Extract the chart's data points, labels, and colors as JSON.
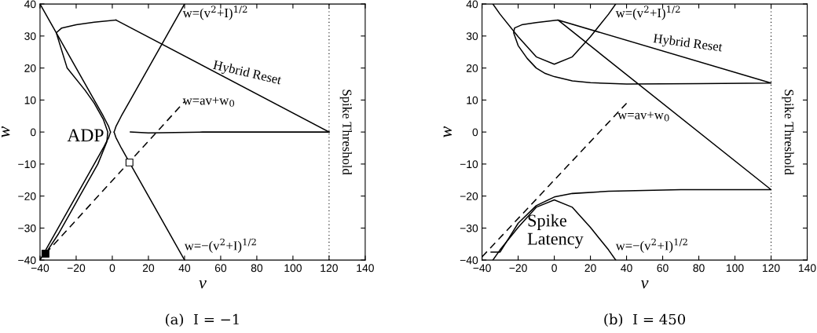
{
  "chart_data": [
    {
      "type": "line",
      "title": "(a)  I = −1",
      "xlabel": "v",
      "ylabel": "w",
      "xlim": [
        -40,
        140
      ],
      "ylim": [
        -40,
        40
      ],
      "xticks": [
        -40,
        -20,
        0,
        20,
        40,
        60,
        80,
        100,
        120,
        140
      ],
      "yticks": [
        -40,
        -30,
        -20,
        -10,
        0,
        10,
        20,
        30,
        40
      ],
      "ref_lines": [
        {
          "axis": "x",
          "value": 120,
          "label": "Spike Threshold",
          "color": "#000000",
          "line_style": "dotted"
        }
      ],
      "annotations": [
        "w=(v$^{2}$+I)$^{1/2}$",
        "w=av+w$_{0}$",
        "w=−(v$^{2}$+I)$^{1/2}$",
        "ADP"
      ],
      "series": [
        {
          "color": "#000000",
          "x": [
            -40,
            -30,
            -20,
            -10,
            -5,
            -2,
            -1,
            0,
            1,
            2,
            5,
            10,
            20,
            30,
            40
          ],
          "values": [
            40,
            30,
            20,
            10,
            5,
            1.7,
            0,
            null,
            0,
            1.7,
            5,
            10,
            20,
            30,
            40
          ]
        },
        {
          "color": "#000000",
          "x": [
            -40,
            -30,
            -20,
            -10,
            -5,
            -2,
            -1,
            0,
            1,
            2,
            5,
            10,
            20,
            30,
            40
          ],
          "values": [
            -40,
            -30,
            -20,
            -10,
            -5,
            -1.7,
            0,
            null,
            0,
            -1.7,
            -5,
            -10,
            -20,
            -30,
            -40
          ]
        },
        {
          "color": "#000000",
          "line_style": "dashed",
          "x": [
            -37,
            40
          ],
          "values": [
            -38,
            9.5
          ]
        },
        {
          "color": "#000000",
          "x": [
            10,
            20,
            50,
            120
          ],
          "values": [
            0,
            -0.3,
            0,
            0
          ]
        },
        {
          "name": "Hybrid Reset",
          "color": "#000000",
          "x": [
            120,
            2
          ],
          "values": [
            0,
            35
          ]
        },
        {
          "color": "#000000",
          "x": [
            2,
            -10,
            -20,
            -28,
            -31,
            -25,
            -15,
            -10,
            -5,
            -2.5,
            -3,
            -8,
            -20,
            -30,
            -37
          ],
          "values": [
            35,
            34.3,
            33.5,
            32.5,
            31,
            20,
            13,
            9,
            4,
            0,
            -3,
            -10,
            -22,
            -32,
            -38
          ]
        },
        {
          "type": "scatter",
          "marker": "square",
          "color": "#000000",
          "x": [
            -37
          ],
          "values": [
            -38
          ]
        },
        {
          "type": "scatter",
          "marker": "square",
          "color": "#ffffff",
          "x": [
            9.5
          ],
          "values": [
            -9.5
          ]
        }
      ]
    },
    {
      "type": "line",
      "title": "(b)  I = 450",
      "xlabel": "v",
      "ylabel": "w",
      "xlim": [
        -40,
        140
      ],
      "ylim": [
        -40,
        40
      ],
      "xticks": [
        -40,
        -20,
        0,
        20,
        40,
        60,
        80,
        100,
        120,
        140
      ],
      "yticks": [
        -40,
        -30,
        -20,
        -10,
        0,
        10,
        20,
        30,
        40
      ],
      "ref_lines": [
        {
          "axis": "x",
          "value": 120,
          "label": "Spike Threshold",
          "color": "#000000",
          "line_style": "dotted"
        }
      ],
      "annotations": [
        "w=(v$^{2}$+I)$^{1/2}$",
        "w=av+w$_{0}$",
        "w=−(v$^{2}$+I)$^{1/2}$",
        "Spike\nLatency"
      ],
      "series": [
        {
          "color": "#000000",
          "x": [
            -34,
            -30,
            -20,
            -10,
            0,
            10,
            20,
            30,
            34
          ],
          "values": [
            40,
            36.8,
            29.8,
            23.5,
            21.2,
            23.5,
            29.8,
            36.8,
            40
          ]
        },
        {
          "color": "#000000",
          "x": [
            -34,
            -30,
            -20,
            -10,
            0,
            10,
            20,
            30,
            34
          ],
          "values": [
            -40,
            -36.8,
            -29.8,
            -23.5,
            -21.2,
            -23.5,
            -29.8,
            -36.8,
            -40
          ]
        },
        {
          "color": "#000000",
          "line_style": "dashed",
          "x": [
            -40,
            40
          ],
          "values": [
            -39,
            9
          ]
        },
        {
          "name": "Hybrid Reset",
          "color": "#000000",
          "x": [
            -35,
            -30,
            -25,
            -20,
            -10,
            0,
            10,
            30,
            70,
            120,
            2,
            -10,
            -18,
            -22,
            -22.5,
            -20,
            -15,
            -10,
            -5,
            0,
            10,
            20,
            40,
            80,
            120,
            2
          ],
          "values": [
            -37.5,
            -37.5,
            -33,
            -28.5,
            -23,
            -20.3,
            -19.2,
            -18.5,
            -18,
            -18,
            35,
            34.2,
            33.5,
            32.5,
            31,
            27,
            23,
            20,
            18.3,
            17.3,
            16,
            15.4,
            15,
            15.1,
            15.3,
            35
          ]
        }
      ]
    }
  ]
}
